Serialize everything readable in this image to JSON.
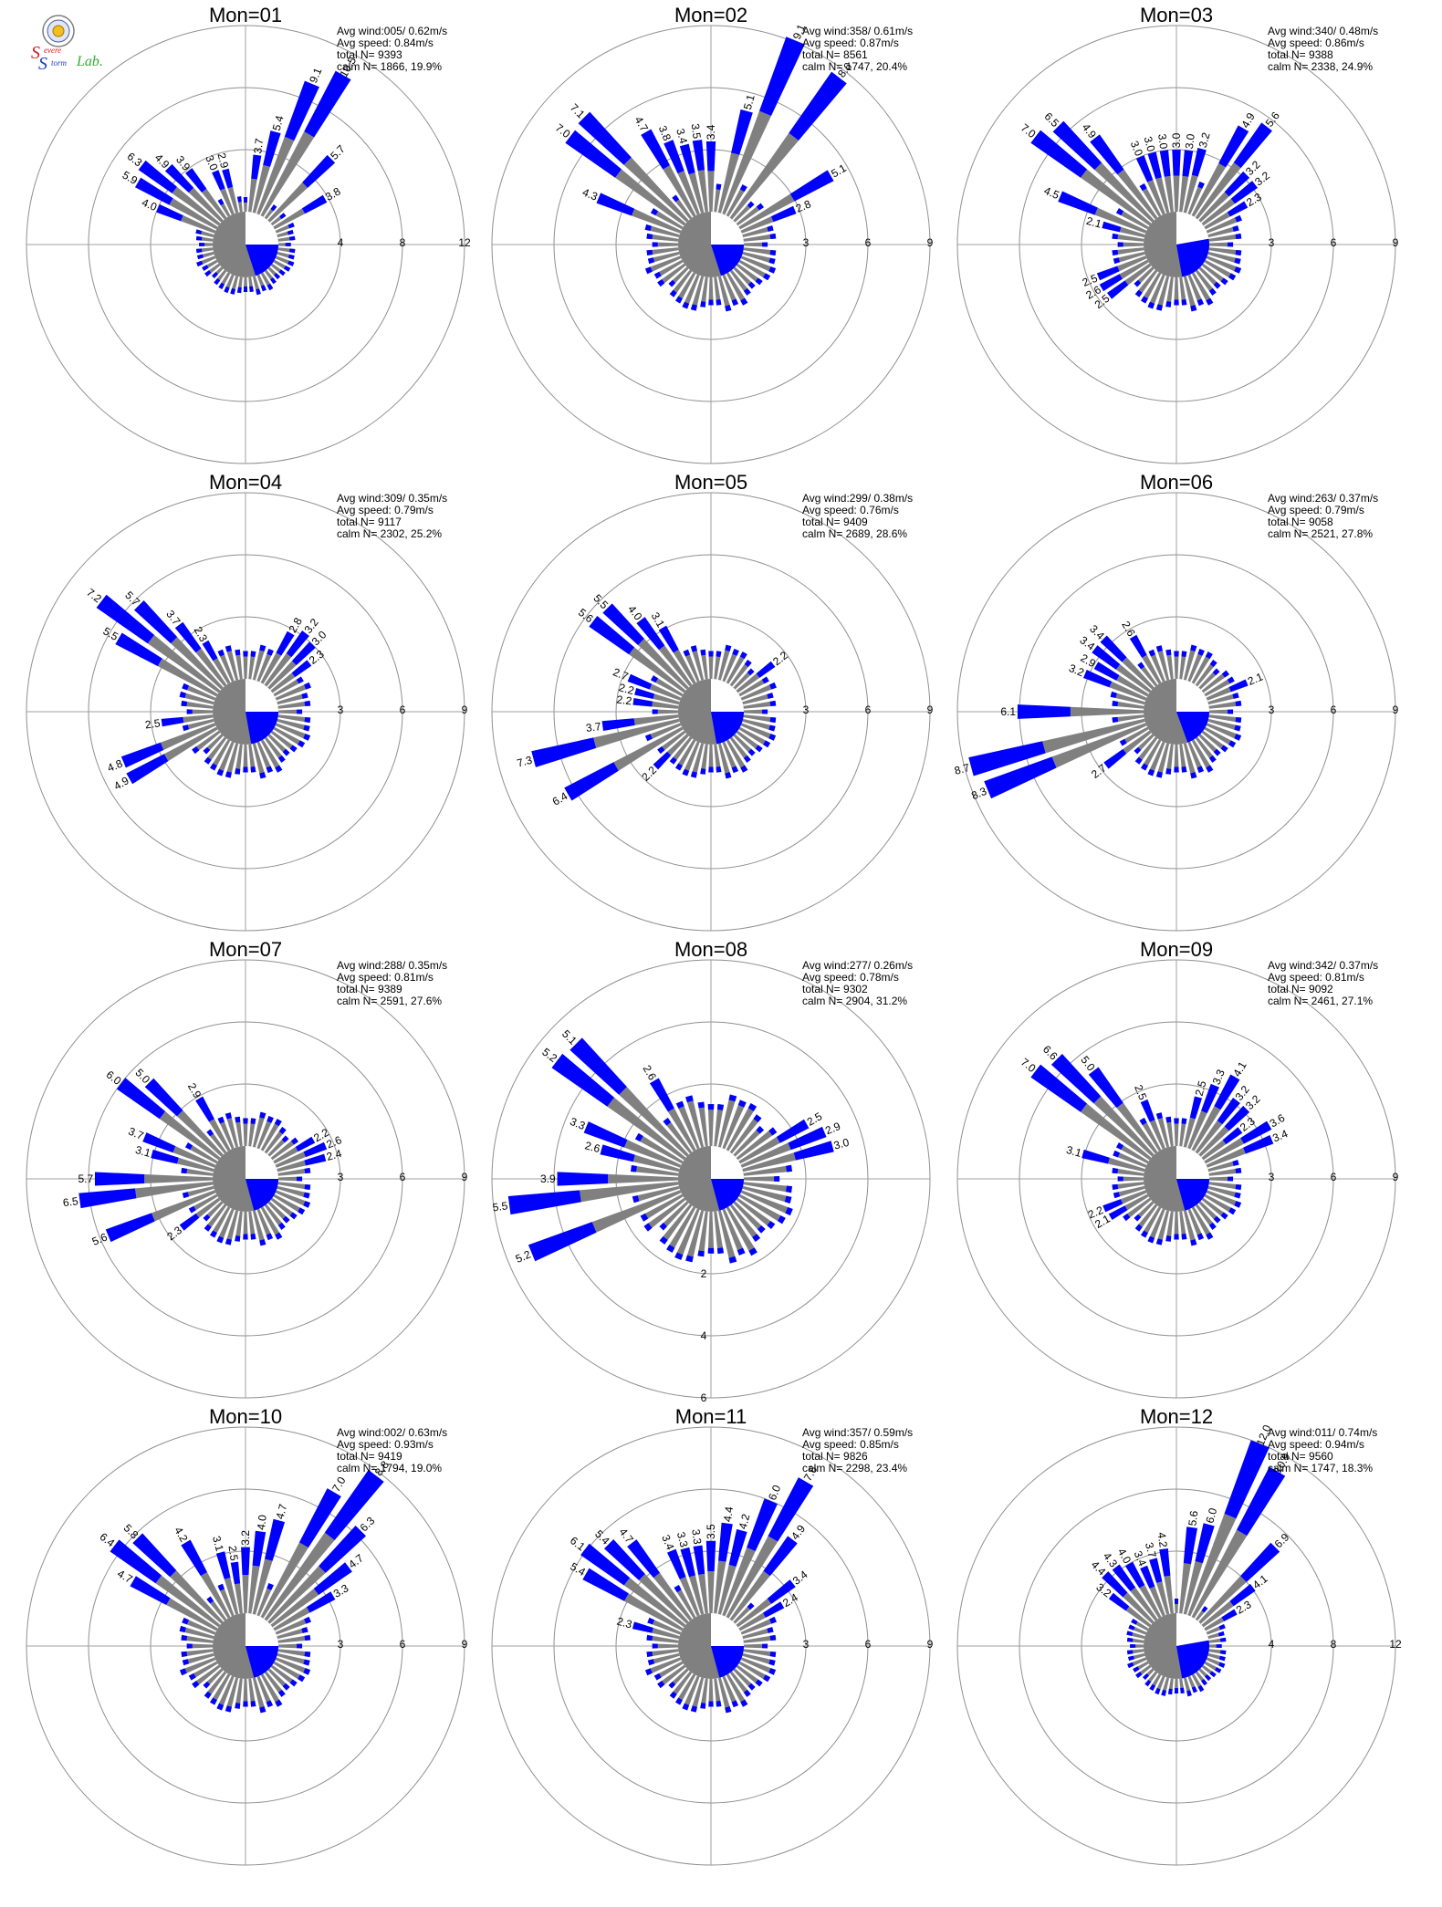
{
  "logo": {
    "text_s1": "S",
    "text_evere": "evere",
    "text_s2": "S",
    "text_torm": "torm",
    "text_lab": "Lab."
  },
  "colors": {
    "calm_low": "#0000ff",
    "mid": "#808080",
    "high": "#00cc00",
    "ring": "#909090",
    "axis": "#a0a0a0"
  },
  "chart_data": [
    {
      "type": "polar-bar",
      "title": "Mon=01",
      "info": [
        "Avg wind:005/ 0.62m/s",
        "Avg speed: 0.84m/s",
        "total N=      9393",
        "calm N=   1866,  19.9%"
      ],
      "rings": [
        4,
        8,
        12
      ],
      "calm_start_deg": 90,
      "calm_span_deg": 72,
      "sectors": [
        {
          "dir": 22.5,
          "value": 9.1,
          "label": "9.1"
        },
        {
          "dir": 30,
          "value": 10.5,
          "label": "10.5"
        },
        {
          "dir": 15,
          "value": 5.4,
          "label": "5.4"
        },
        {
          "dir": 45,
          "value": 5.7,
          "label": "5.7"
        },
        {
          "dir": 60,
          "value": 3.8,
          "label": "3.8"
        },
        {
          "dir": 7.5,
          "value": 3.7,
          "label": "3.7"
        },
        {
          "dir": 337.5,
          "value": 3.0,
          "label": "3.0"
        },
        {
          "dir": 345,
          "value": 2.9,
          "label": "2.9"
        },
        {
          "dir": 322.5,
          "value": 3.9,
          "label": "3.9"
        },
        {
          "dir": 315,
          "value": 4.9,
          "label": "4.9"
        },
        {
          "dir": 307.5,
          "value": 6.3,
          "label": "6.3"
        },
        {
          "dir": 300,
          "value": 5.9,
          "label": "5.9"
        },
        {
          "dir": 292.5,
          "value": 4.0,
          "label": "4.0"
        }
      ]
    },
    {
      "type": "polar-bar",
      "title": "Mon=02",
      "info": [
        "Avg wind:358/ 0.61m/s",
        "Avg speed: 0.87m/s",
        "total N=      8561",
        "calm N=   1747,  20.4%"
      ],
      "rings": [
        3,
        6,
        9
      ],
      "calm_start_deg": 90,
      "calm_span_deg": 72,
      "sectors": [
        {
          "dir": 22.5,
          "value": 9.1,
          "label": "9.1"
        },
        {
          "dir": 37.5,
          "value": 8.6,
          "label": "8.6"
        },
        {
          "dir": 15,
          "value": 5.1,
          "label": "5.1"
        },
        {
          "dir": 60,
          "value": 5.1,
          "label": "5.1"
        },
        {
          "dir": 67.5,
          "value": 2.8,
          "label": "2.8"
        },
        {
          "dir": 0,
          "value": 3.4,
          "label": "3.4"
        },
        {
          "dir": 352.5,
          "value": 3.5,
          "label": "3.5"
        },
        {
          "dir": 345,
          "value": 3.4,
          "label": "3.4"
        },
        {
          "dir": 337.5,
          "value": 3.8,
          "label": "3.8"
        },
        {
          "dir": 330,
          "value": 4.7,
          "label": "4.7"
        },
        {
          "dir": 315,
          "value": 7.1,
          "label": "7.1"
        },
        {
          "dir": 307.5,
          "value": 7.0,
          "label": "7.0"
        },
        {
          "dir": 292.5,
          "value": 4.3,
          "label": "4.3"
        }
      ]
    },
    {
      "type": "polar-bar",
      "title": "Mon=03",
      "info": [
        "Avg wind:340/ 0.48m/s",
        "Avg speed: 0.86m/s",
        "total N=      9388",
        "calm N=   2338,  24.9%"
      ],
      "rings": [
        3,
        6,
        9
      ],
      "calm_start_deg": 80,
      "calm_span_deg": 90,
      "sectors": [
        {
          "dir": 30,
          "value": 4.9,
          "label": "4.9"
        },
        {
          "dir": 37.5,
          "value": 5.6,
          "label": "5.6"
        },
        {
          "dir": 45,
          "value": 3.2,
          "label": "3.2"
        },
        {
          "dir": 52.5,
          "value": 3.2,
          "label": "3.2"
        },
        {
          "dir": 60,
          "value": 2.3,
          "label": "2.3"
        },
        {
          "dir": 15,
          "value": 3.2,
          "label": "3.2"
        },
        {
          "dir": 7.5,
          "value": 3.0,
          "label": "3.0"
        },
        {
          "dir": 0,
          "value": 3.0,
          "label": "3.0"
        },
        {
          "dir": 352.5,
          "value": 3.0,
          "label": "3.0"
        },
        {
          "dir": 345,
          "value": 3.0,
          "label": "3.0"
        },
        {
          "dir": 337.5,
          "value": 3.0,
          "label": "3.0"
        },
        {
          "dir": 322.5,
          "value": 4.9,
          "label": "4.9"
        },
        {
          "dir": 315,
          "value": 6.5,
          "label": "6.5"
        },
        {
          "dir": 307.5,
          "value": 7.0,
          "label": "7.0"
        },
        {
          "dir": 292.5,
          "value": 4.5,
          "label": "4.5"
        },
        {
          "dir": 285,
          "value": 2.1,
          "label": "2.1"
        },
        {
          "dir": 247.5,
          "value": 2.5,
          "label": "2.5"
        },
        {
          "dir": 240,
          "value": 2.6,
          "label": "2.6"
        },
        {
          "dir": 232.5,
          "value": 2.5,
          "label": "2.5"
        }
      ]
    },
    {
      "type": "polar-bar",
      "title": "Mon=04",
      "info": [
        "Avg wind:309/ 0.35m/s",
        "Avg speed: 0.79m/s",
        "total N=      9117",
        "calm N=   2302,  25.2%"
      ],
      "rings": [
        3,
        6,
        9
      ],
      "calm_start_deg": 90,
      "calm_span_deg": 80,
      "sectors": [
        {
          "dir": 307.5,
          "value": 7.2,
          "label": "7.2"
        },
        {
          "dir": 315,
          "value": 5.7,
          "label": "5.7"
        },
        {
          "dir": 300,
          "value": 5.5,
          "label": "5.5"
        },
        {
          "dir": 322.5,
          "value": 3.7,
          "label": "3.7"
        },
        {
          "dir": 330,
          "value": 2.3,
          "label": "2.3"
        },
        {
          "dir": 30,
          "value": 2.8,
          "label": "2.8"
        },
        {
          "dir": 37.5,
          "value": 3.2,
          "label": "3.2"
        },
        {
          "dir": 45,
          "value": 3.0,
          "label": "3.0"
        },
        {
          "dir": 52.5,
          "value": 2.3,
          "label": "2.3"
        },
        {
          "dir": 262.5,
          "value": 2.5,
          "label": "2.5"
        },
        {
          "dir": 247.5,
          "value": 4.8,
          "label": "4.8"
        },
        {
          "dir": 240,
          "value": 4.9,
          "label": "4.9"
        }
      ]
    },
    {
      "type": "polar-bar",
      "title": "Mon=05",
      "info": [
        "Avg wind:299/ 0.38m/s",
        "Avg speed: 0.76m/s",
        "total N=      9409",
        "calm N=   2689,  28.6%"
      ],
      "rings": [
        3,
        6,
        9
      ],
      "calm_start_deg": 90,
      "calm_span_deg": 80,
      "sectors": [
        {
          "dir": 307.5,
          "value": 5.6,
          "label": "5.6"
        },
        {
          "dir": 315,
          "value": 5.5,
          "label": "5.5"
        },
        {
          "dir": 322.5,
          "value": 4.0,
          "label": "4.0"
        },
        {
          "dir": 330,
          "value": 3.1,
          "label": "3.1"
        },
        {
          "dir": 292.5,
          "value": 2.7,
          "label": "2.7"
        },
        {
          "dir": 285,
          "value": 2.2,
          "label": "2.2"
        },
        {
          "dir": 277.5,
          "value": 2.2,
          "label": "2.2"
        },
        {
          "dir": 262.5,
          "value": 3.7,
          "label": "3.7"
        },
        {
          "dir": 255,
          "value": 7.3,
          "label": "7.3"
        },
        {
          "dir": 240,
          "value": 6.4,
          "label": "6.4"
        },
        {
          "dir": 225,
          "value": 2.2,
          "label": "2.2"
        },
        {
          "dir": 52.5,
          "value": 2.2,
          "label": "2.2"
        }
      ]
    },
    {
      "type": "polar-bar",
      "title": "Mon=06",
      "info": [
        "Avg wind:263/ 0.37m/s",
        "Avg speed: 0.79m/s",
        "total N=      9058",
        "calm N=   2521,  27.8%"
      ],
      "rings": [
        3,
        6,
        9
      ],
      "calm_start_deg": 90,
      "calm_span_deg": 70,
      "sectors": [
        {
          "dir": 270,
          "value": 6.1,
          "label": "6.1"
        },
        {
          "dir": 255,
          "value": 8.7,
          "label": "8.7"
        },
        {
          "dir": 247.5,
          "value": 8.3,
          "label": "8.3"
        },
        {
          "dir": 232.5,
          "value": 2.7,
          "label": "2.7"
        },
        {
          "dir": 292.5,
          "value": 3.2,
          "label": "3.2"
        },
        {
          "dir": 300,
          "value": 2.9,
          "label": "2.9"
        },
        {
          "dir": 307.5,
          "value": 3.4,
          "label": "3.4"
        },
        {
          "dir": 315,
          "value": 3.4,
          "label": "3.4"
        },
        {
          "dir": 330,
          "value": 2.6,
          "label": "2.6"
        },
        {
          "dir": 67.5,
          "value": 2.1,
          "label": "2.1"
        }
      ]
    },
    {
      "type": "polar-bar",
      "title": "Mon=07",
      "info": [
        "Avg wind:288/ 0.35m/s",
        "Avg speed: 0.81m/s",
        "total N=      9389",
        "calm N=   2591,  27.6%"
      ],
      "rings": [
        3,
        6,
        9
      ],
      "calm_start_deg": 90,
      "calm_span_deg": 75,
      "sectors": [
        {
          "dir": 307.5,
          "value": 6.0,
          "label": "6.0"
        },
        {
          "dir": 315,
          "value": 5.0,
          "label": "5.0"
        },
        {
          "dir": 330,
          "value": 2.9,
          "label": "2.9"
        },
        {
          "dir": 292.5,
          "value": 3.7,
          "label": "3.7"
        },
        {
          "dir": 285,
          "value": 3.1,
          "label": "3.1"
        },
        {
          "dir": 270,
          "value": 5.7,
          "label": "5.7"
        },
        {
          "dir": 262.5,
          "value": 6.5,
          "label": "6.5"
        },
        {
          "dir": 247.5,
          "value": 5.6,
          "label": "5.6"
        },
        {
          "dir": 232.5,
          "value": 2.3,
          "label": "2.3"
        },
        {
          "dir": 60,
          "value": 2.2,
          "label": "2.2"
        },
        {
          "dir": 67.5,
          "value": 2.6,
          "label": "2.6"
        },
        {
          "dir": 75,
          "value": 2.4,
          "label": "2.4"
        }
      ]
    },
    {
      "type": "polar-bar",
      "title": "Mon=08",
      "info": [
        "Avg wind:277/ 0.26m/s",
        "Avg speed: 0.78m/s",
        "total N=      9302",
        "calm N=   2904,  31.2%"
      ],
      "rings": [
        2,
        4,
        6
      ],
      "ring_axis": "south",
      "calm_start_deg": 90,
      "calm_span_deg": 75,
      "sectors": [
        {
          "dir": 315,
          "value": 5.1,
          "label": "5.1"
        },
        {
          "dir": 307.5,
          "value": 5.2,
          "label": "5.2"
        },
        {
          "dir": 330,
          "value": 2.6,
          "label": "2.6"
        },
        {
          "dir": 292.5,
          "value": 3.3,
          "label": "3.3"
        },
        {
          "dir": 285,
          "value": 2.6,
          "label": "2.6"
        },
        {
          "dir": 270,
          "value": 3.9,
          "label": "3.9"
        },
        {
          "dir": 262.5,
          "value": 5.5,
          "label": "5.5"
        },
        {
          "dir": 247.5,
          "value": 5.2,
          "label": "5.2"
        },
        {
          "dir": 60,
          "value": 2.5,
          "label": "2.5"
        },
        {
          "dir": 67.5,
          "value": 2.9,
          "label": "2.9"
        },
        {
          "dir": 75,
          "value": 3.0,
          "label": "3.0"
        }
      ]
    },
    {
      "type": "polar-bar",
      "title": "Mon=09",
      "info": [
        "Avg wind:342/ 0.37m/s",
        "Avg speed: 0.81m/s",
        "total N=      9092",
        "calm N=   2461,  27.1%"
      ],
      "rings": [
        3,
        6,
        9
      ],
      "calm_start_deg": 90,
      "calm_span_deg": 75,
      "sectors": [
        {
          "dir": 307.5,
          "value": 7.0,
          "label": "7.0"
        },
        {
          "dir": 315,
          "value": 6.6,
          "label": "6.6"
        },
        {
          "dir": 322.5,
          "value": 5.0,
          "label": "5.0"
        },
        {
          "dir": 337.5,
          "value": 2.5,
          "label": "2.5"
        },
        {
          "dir": 15,
          "value": 2.5,
          "label": "2.5"
        },
        {
          "dir": 22.5,
          "value": 3.3,
          "label": "3.3"
        },
        {
          "dir": 30,
          "value": 4.1,
          "label": "4.1"
        },
        {
          "dir": 37.5,
          "value": 3.2,
          "label": "3.2"
        },
        {
          "dir": 45,
          "value": 3.2,
          "label": "3.2"
        },
        {
          "dir": 52.5,
          "value": 2.3,
          "label": "2.3"
        },
        {
          "dir": 60,
          "value": 3.6,
          "label": "3.6"
        },
        {
          "dir": 67.5,
          "value": 3.4,
          "label": "3.4"
        },
        {
          "dir": 285,
          "value": 3.1,
          "label": "3.1"
        },
        {
          "dir": 247.5,
          "value": 2.2,
          "label": "2.2"
        },
        {
          "dir": 240,
          "value": 2.1,
          "label": "2.1"
        }
      ]
    },
    {
      "type": "polar-bar",
      "title": "Mon=10",
      "info": [
        "Avg wind:002/ 0.63m/s",
        "Avg speed: 0.93m/s",
        "total N=      9419",
        "calm N=   1794,  19.0%"
      ],
      "rings": [
        3,
        6,
        9
      ],
      "calm_start_deg": 90,
      "calm_span_deg": 75,
      "sectors": [
        {
          "dir": 30,
          "value": 7.0,
          "label": "7.0"
        },
        {
          "dir": 37.5,
          "value": 8.8,
          "label": "8.8"
        },
        {
          "dir": 45,
          "value": 6.3,
          "label": "6.3"
        },
        {
          "dir": 52.5,
          "value": 4.7,
          "label": "4.7"
        },
        {
          "dir": 60,
          "value": 3.3,
          "label": "3.3"
        },
        {
          "dir": 15,
          "value": 4.7,
          "label": "4.7"
        },
        {
          "dir": 7.5,
          "value": 4.0,
          "label": "4.0"
        },
        {
          "dir": 0,
          "value": 3.2,
          "label": "3.2"
        },
        {
          "dir": 352.5,
          "value": 2.5,
          "label": "2.5"
        },
        {
          "dir": 345,
          "value": 3.1,
          "label": "3.1"
        },
        {
          "dir": 330,
          "value": 4.2,
          "label": "4.2"
        },
        {
          "dir": 315,
          "value": 5.8,
          "label": "5.8"
        },
        {
          "dir": 307.5,
          "value": 6.4,
          "label": "6.4"
        },
        {
          "dir": 300,
          "value": 4.7,
          "label": "4.7"
        }
      ]
    },
    {
      "type": "polar-bar",
      "title": "Mon=11",
      "info": [
        "Avg wind:357/ 0.59m/s",
        "Avg speed: 0.85m/s",
        "total N=      9826",
        "calm N=   2298,  23.4%"
      ],
      "rings": [
        3,
        6,
        9
      ],
      "calm_start_deg": 90,
      "calm_span_deg": 75,
      "sectors": [
        {
          "dir": 22.5,
          "value": 6.0,
          "label": "6.0"
        },
        {
          "dir": 30,
          "value": 7.6,
          "label": "7.6"
        },
        {
          "dir": 37.5,
          "value": 4.9,
          "label": "4.9"
        },
        {
          "dir": 52.5,
          "value": 3.4,
          "label": "3.4"
        },
        {
          "dir": 60,
          "value": 2.4,
          "label": "2.4"
        },
        {
          "dir": 15,
          "value": 4.2,
          "label": "4.2"
        },
        {
          "dir": 7.5,
          "value": 4.4,
          "label": "4.4"
        },
        {
          "dir": 0,
          "value": 3.5,
          "label": "3.5"
        },
        {
          "dir": 352.5,
          "value": 3.3,
          "label": "3.3"
        },
        {
          "dir": 345,
          "value": 3.3,
          "label": "3.3"
        },
        {
          "dir": 337.5,
          "value": 3.4,
          "label": "3.4"
        },
        {
          "dir": 322.5,
          "value": 4.7,
          "label": "4.7"
        },
        {
          "dir": 315,
          "value": 5.4,
          "label": "5.4"
        },
        {
          "dir": 307.5,
          "value": 6.1,
          "label": "6.1"
        },
        {
          "dir": 300,
          "value": 5.4,
          "label": "5.4"
        },
        {
          "dir": 285,
          "value": 2.3,
          "label": "2.3"
        }
      ]
    },
    {
      "type": "polar-bar",
      "title": "Mon=12",
      "info": [
        "Avg wind:011/ 0.74m/s",
        "Avg speed: 0.94m/s",
        "total N=      9560",
        "calm N=   1747,  18.3%"
      ],
      "rings": [
        4,
        8,
        12
      ],
      "calm_start_deg": 80,
      "calm_span_deg": 90,
      "sectors": [
        {
          "dir": 22.5,
          "value": 12.0,
          "label": "12.0"
        },
        {
          "dir": 30,
          "value": 10.9,
          "label": "10.9"
        },
        {
          "dir": 45,
          "value": 6.9,
          "label": "6.9"
        },
        {
          "dir": 52.5,
          "value": 4.1,
          "label": "4.1"
        },
        {
          "dir": 60,
          "value": 2.3,
          "label": "2.3"
        },
        {
          "dir": 15,
          "value": 6.0,
          "label": "6.0"
        },
        {
          "dir": 7.5,
          "value": 5.6,
          "label": "5.6"
        },
        {
          "dir": 352.5,
          "value": 4.2,
          "label": "4.2"
        },
        {
          "dir": 345,
          "value": 3.7,
          "label": "3.7"
        },
        {
          "dir": 337.5,
          "value": 3.4,
          "label": "3.4"
        },
        {
          "dir": 330,
          "value": 4.0,
          "label": "4.0"
        },
        {
          "dir": 322.5,
          "value": 4.3,
          "label": "4.3"
        },
        {
          "dir": 315,
          "value": 4.4,
          "label": "4.4"
        },
        {
          "dir": 307.5,
          "value": 3.2,
          "label": "3.2"
        }
      ]
    }
  ]
}
